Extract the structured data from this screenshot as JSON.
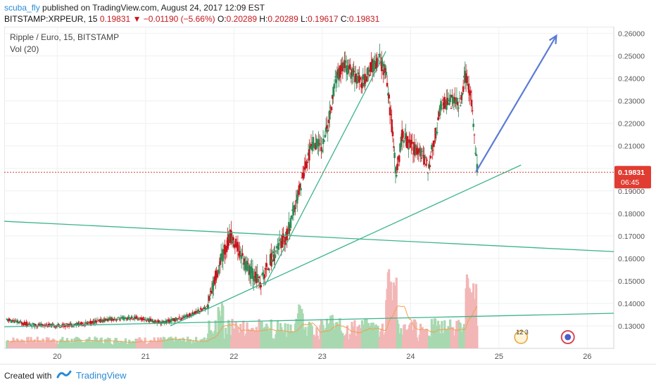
{
  "header": {
    "user": "scuba_fly",
    "published_text": " published on TradingView.com, August 24, 2017 12:09 EST",
    "symbol": "BITSTAMP:XRPEUR, 15",
    "last": "0.19831",
    "arrow": "▼",
    "change": "−0.01190 (−5.66%)",
    "o_label": "O:",
    "o_val": "0.20289",
    "h_label": "H:",
    "h_val": "0.20289",
    "l_label": "L:",
    "l_val": "0.19617",
    "c_label": "C:",
    "c_val": "0.19831"
  },
  "pane": {
    "title": "Ripple / Euro, 15, BITSTAMP",
    "volume_label": "Vol (20)"
  },
  "footer": {
    "created_with": "Created with",
    "brand": "TradingView"
  },
  "colors": {
    "up": "#2e8b57",
    "down": "#c5171e",
    "trendline": "#3cb48c",
    "arrow": "#5b7bd5",
    "price_line": "#e03c31",
    "vol_up": "#a8d8b0",
    "vol_down": "#f2b6b6",
    "vol_ma": "#f0a050"
  },
  "chart_data": {
    "type": "candlestick",
    "title": "Ripple / Euro, 15, BITSTAMP",
    "x_tick_labels": [
      "20",
      "21",
      "22",
      "23",
      "24",
      "25",
      "26"
    ],
    "y_tick_labels": [
      "0.13000",
      "0.14000",
      "0.15000",
      "0.16000",
      "0.17000",
      "0.18000",
      "0.19000",
      "0.20000",
      "0.21000",
      "0.22000",
      "0.23000",
      "0.24000",
      "0.25000",
      "0.26000"
    ],
    "ylim": [
      0.12,
      0.263
    ],
    "xlim": [
      19.4,
      26.3
    ],
    "current_price": 0.19831,
    "countdown": "06:45",
    "price_path": [
      [
        19.45,
        0.1325
      ],
      [
        19.7,
        0.1305
      ],
      [
        20.0,
        0.13
      ],
      [
        20.3,
        0.131
      ],
      [
        20.6,
        0.133
      ],
      [
        20.9,
        0.1335
      ],
      [
        21.2,
        0.1315
      ],
      [
        21.45,
        0.134
      ],
      [
        21.7,
        0.1385
      ],
      [
        21.8,
        0.153
      ],
      [
        21.88,
        0.162
      ],
      [
        21.96,
        0.17
      ],
      [
        22.05,
        0.164
      ],
      [
        22.15,
        0.156
      ],
      [
        22.3,
        0.149
      ],
      [
        22.4,
        0.158
      ],
      [
        22.5,
        0.165
      ],
      [
        22.6,
        0.17
      ],
      [
        22.7,
        0.184
      ],
      [
        22.8,
        0.2
      ],
      [
        22.9,
        0.212
      ],
      [
        23.0,
        0.21
      ],
      [
        23.08,
        0.222
      ],
      [
        23.15,
        0.24
      ],
      [
        23.25,
        0.246
      ],
      [
        23.35,
        0.242
      ],
      [
        23.45,
        0.238
      ],
      [
        23.55,
        0.245
      ],
      [
        23.65,
        0.248
      ],
      [
        23.72,
        0.242
      ],
      [
        23.78,
        0.222
      ],
      [
        23.84,
        0.196
      ],
      [
        23.9,
        0.215
      ],
      [
        24.0,
        0.21
      ],
      [
        24.1,
        0.208
      ],
      [
        24.2,
        0.2
      ],
      [
        24.28,
        0.215
      ],
      [
        24.35,
        0.228
      ],
      [
        24.45,
        0.23
      ],
      [
        24.55,
        0.228
      ],
      [
        24.62,
        0.241
      ],
      [
        24.68,
        0.234
      ],
      [
        24.72,
        0.215
      ],
      [
        24.76,
        0.1983
      ]
    ],
    "volume_peaks": [
      [
        21.85,
        0.55
      ],
      [
        22.4,
        0.3
      ],
      [
        22.75,
        0.55
      ],
      [
        23.1,
        0.4
      ],
      [
        23.75,
        0.95
      ],
      [
        23.82,
        0.85
      ],
      [
        24.0,
        0.25
      ],
      [
        24.65,
        0.9
      ],
      [
        24.72,
        0.8
      ]
    ],
    "trendlines": [
      {
        "x1": 19.4,
        "y1": 0.1765,
        "x2": 26.3,
        "y2": 0.163
      },
      {
        "x1": 19.4,
        "y1": 0.1296,
        "x2": 26.3,
        "y2": 0.1356
      },
      {
        "x1": 21.28,
        "y1": 0.13,
        "x2": 25.25,
        "y2": 0.2015
      },
      {
        "x1": 22.35,
        "y1": 0.148,
        "x2": 23.72,
        "y2": 0.252
      }
    ],
    "forecast_arrow": {
      "x1": 24.74,
      "y1": 0.1985,
      "x2": 25.65,
      "y2": 0.259
    }
  }
}
